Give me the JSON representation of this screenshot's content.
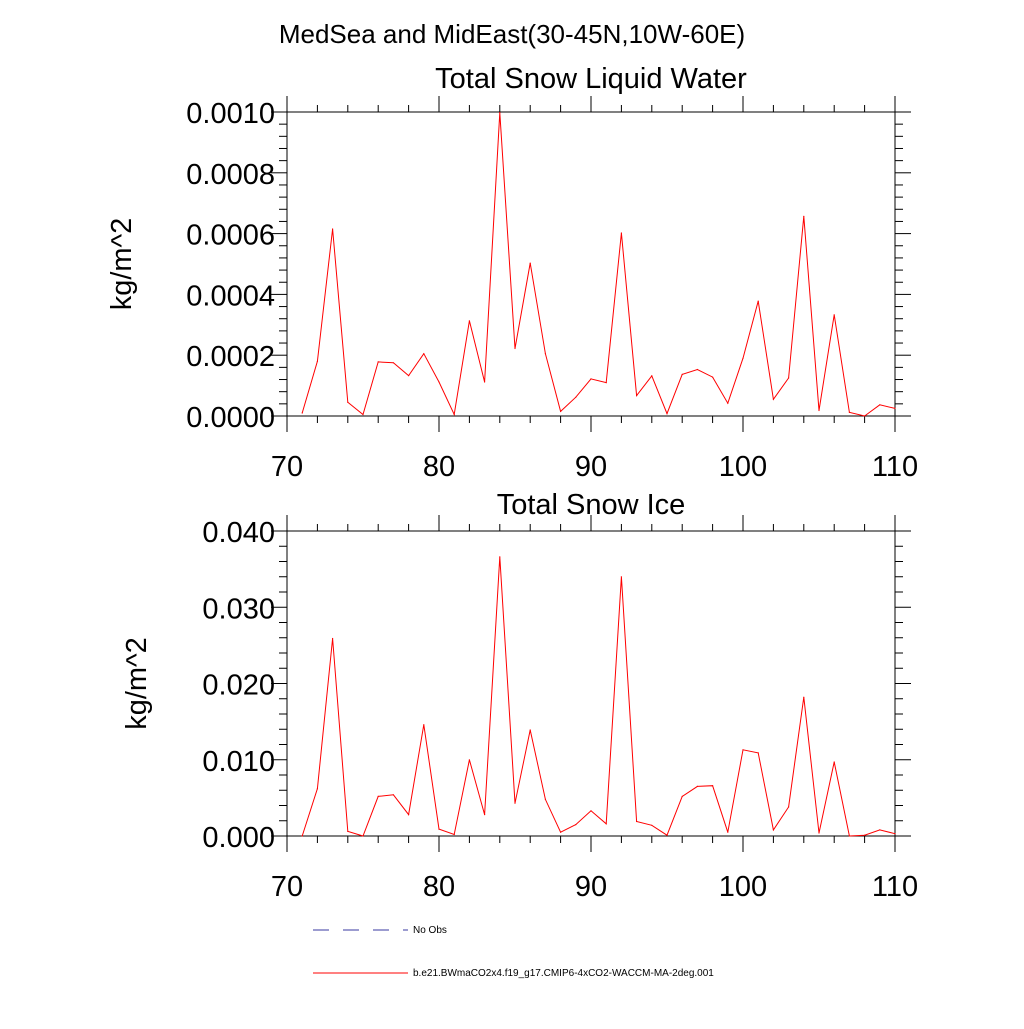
{
  "figure_title": "MedSea and MidEast(30-45N,10W-60E)",
  "legend": {
    "entries": [
      {
        "label": "No Obs",
        "color": "#3a3aa0",
        "style": "dashed"
      },
      {
        "label": "b.e21.BWmaCO2x4.f19_g17.CMIP6-4xCO2-WACCM-MA-2deg.001",
        "color": "#ff0000",
        "style": "solid"
      }
    ]
  },
  "chart_data": [
    {
      "type": "line",
      "title": "Total Snow Liquid Water",
      "xlabel": "",
      "ylabel": "kg/m^2",
      "xlim": [
        70,
        110
      ],
      "ylim": [
        0,
        0.001
      ],
      "xticks": [
        70,
        80,
        90,
        100,
        110
      ],
      "xtick_labels": [
        "70",
        "80",
        "90",
        "100",
        "110"
      ],
      "yticks": [
        0,
        0.0002,
        0.0004,
        0.0006,
        0.0008,
        0.001
      ],
      "ytick_labels": [
        "0.0000",
        "0.0002",
        "0.0004",
        "0.0006",
        "0.0008",
        "0.0010"
      ],
      "series": [
        {
          "name": "b.e21.BWmaCO2x4.f19_g17.CMIP6-4xCO2-WACCM-MA-2deg.001",
          "color": "#ff0000",
          "x": [
            71,
            72,
            73,
            74,
            75,
            76,
            77,
            78,
            79,
            80,
            81,
            82,
            83,
            84,
            85,
            86,
            87,
            88,
            89,
            90,
            91,
            92,
            93,
            94,
            95,
            96,
            97,
            98,
            99,
            100,
            101,
            102,
            103,
            104,
            105,
            106,
            107,
            108,
            109,
            110
          ],
          "values": [
            1e-05,
            0.00018,
            0.000615,
            4.5e-05,
            5e-06,
            0.000178,
            0.000175,
            0.000133,
            0.000205,
            0.000112,
            5e-06,
            0.000313,
            0.000112,
            0.000998,
            0.000222,
            0.000503,
            0.000205,
            1.5e-05,
            6.2e-05,
            0.000122,
            0.00011,
            0.000602,
            6.7e-05,
            0.000132,
            8e-06,
            0.000137,
            0.000153,
            0.000128,
            4.2e-05,
            0.00019,
            0.000378,
            5.5e-05,
            0.000125,
            0.000657,
            1.8e-05,
            0.000333,
            1.2e-05,
            0.0,
            3.7e-05,
            2.5e-05
          ]
        }
      ]
    },
    {
      "type": "line",
      "title": "Total Snow Ice",
      "xlabel": "",
      "ylabel": "kg/m^2",
      "xlim": [
        70,
        110
      ],
      "ylim": [
        0,
        0.04
      ],
      "xticks": [
        70,
        80,
        90,
        100,
        110
      ],
      "xtick_labels": [
        "70",
        "80",
        "90",
        "100",
        "110"
      ],
      "yticks": [
        0,
        0.01,
        0.02,
        0.03,
        0.04
      ],
      "ytick_labels": [
        "0.000",
        "0.010",
        "0.020",
        "0.030",
        "0.040"
      ],
      "series": [
        {
          "name": "b.e21.BWmaCO2x4.f19_g17.CMIP6-4xCO2-WACCM-MA-2deg.001",
          "color": "#ff0000",
          "x": [
            71,
            72,
            73,
            74,
            75,
            76,
            77,
            78,
            79,
            80,
            81,
            82,
            83,
            84,
            85,
            86,
            87,
            88,
            89,
            90,
            91,
            92,
            93,
            94,
            95,
            96,
            97,
            98,
            99,
            100,
            101,
            102,
            103,
            104,
            105,
            106,
            107,
            108,
            109,
            110
          ],
          "values": [
            0.0,
            0.0062,
            0.0259,
            0.0006,
            0.0,
            0.0052,
            0.0054,
            0.0028,
            0.0146,
            0.0009,
            0.0002,
            0.01,
            0.0028,
            0.0366,
            0.0043,
            0.0139,
            0.0048,
            0.0005,
            0.0015,
            0.0033,
            0.0016,
            0.034,
            0.0019,
            0.0014,
            0.0001,
            0.0052,
            0.0065,
            0.0066,
            0.0005,
            0.0113,
            0.0109,
            0.0008,
            0.0038,
            0.0182,
            0.0004,
            0.0097,
            0.0,
            0.0001,
            0.0008,
            0.0003
          ]
        }
      ]
    }
  ]
}
